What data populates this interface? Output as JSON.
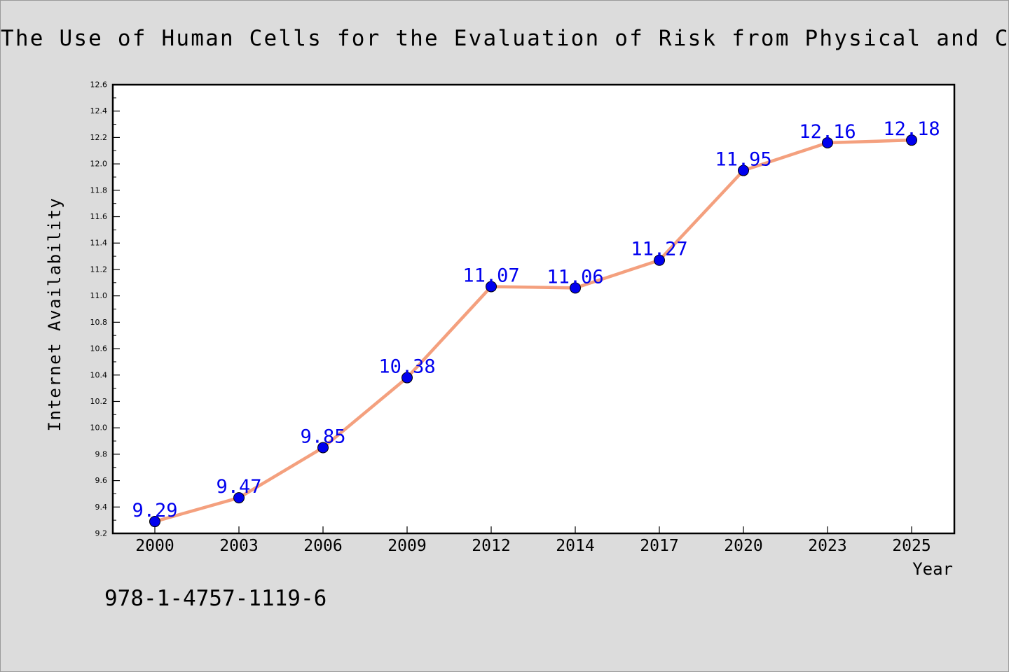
{
  "chart_data": {
    "type": "line",
    "title": "The Use of Human Cells for the Evaluation of Risk from Physical and Chemical Agents",
    "xlabel": "Year",
    "ylabel": "Internet Availability",
    "categories": [
      "2000",
      "2003",
      "2006",
      "2009",
      "2012",
      "2014",
      "2017",
      "2020",
      "2023",
      "2025"
    ],
    "series": [
      {
        "values": [
          9.29,
          9.47,
          9.85,
          10.38,
          11.07,
          11.06,
          11.27,
          11.95,
          12.16,
          12.18
        ],
        "line_color": "#f4a07e",
        "marker_color": "#0000ee"
      }
    ],
    "data_labels": [
      "9.29",
      "9.47",
      "9.85",
      "10.38",
      "11.07",
      "11.06",
      "11.27",
      "11.95",
      "12.16",
      "12.18"
    ],
    "yticks": [
      "9.2",
      "9.4",
      "9.6",
      "9.8",
      "10.0",
      "10.2",
      "10.4",
      "10.6",
      "10.8",
      "11.0",
      "11.2",
      "11.4",
      "11.6",
      "11.8",
      "12.0",
      "12.2",
      "12.4",
      "12.6"
    ],
    "ylim": [
      9.2,
      12.6
    ],
    "grid": false,
    "label_color": "#0000ee"
  },
  "footer": {
    "isbn": "978-1-4757-1119-6"
  }
}
